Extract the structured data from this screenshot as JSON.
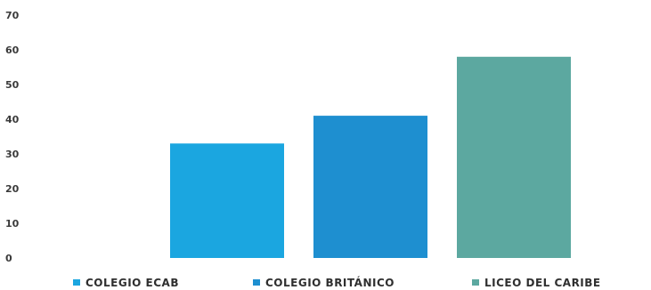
{
  "chart_data": {
    "type": "bar",
    "title": "",
    "xlabel": "",
    "ylabel": "",
    "ylim": [
      0,
      70
    ],
    "yticks": [
      0,
      10,
      20,
      30,
      40,
      50,
      60,
      70
    ],
    "grid": false,
    "legend_position": "bottom",
    "categories": [
      "COLEGIO ECAB",
      "COLEGIO BRITÁNICO",
      "LICEO DEL CARIBE"
    ],
    "values": [
      33,
      41,
      58
    ],
    "colors": [
      "#1ba6e0",
      "#1e8fd0",
      "#5ca8a0"
    ]
  }
}
